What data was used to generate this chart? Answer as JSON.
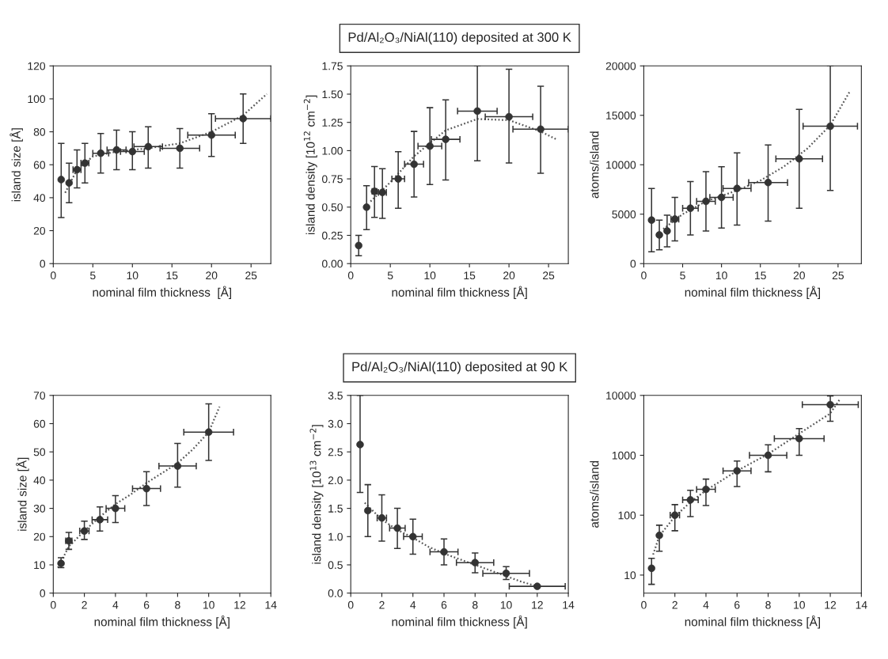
{
  "chart_data": [
    {
      "type": "scatter",
      "ylabel": "island size [Å]",
      "xlabel": "nominal film thickness  [Å]",
      "xlim": [
        0,
        27.5
      ],
      "xticks": [
        0,
        5,
        10,
        15,
        20,
        25
      ],
      "ylim": [
        0,
        120
      ],
      "yticks": [
        0,
        20,
        40,
        60,
        80,
        100,
        120
      ],
      "marker": "circle",
      "grid": false,
      "legend": false,
      "series": [
        {
          "type": "scatter",
          "color": "#333333",
          "x": [
            1,
            2,
            3,
            4,
            6,
            8,
            10,
            12,
            16,
            20,
            24
          ],
          "values": [
            51,
            49,
            57,
            61,
            67,
            69,
            68,
            71,
            70,
            78,
            88
          ],
          "errors": [
            [
              28,
              73
            ],
            [
              37,
              61
            ],
            [
              46,
              69
            ],
            [
              49,
              73
            ],
            [
              55,
              79
            ],
            [
              57,
              81
            ],
            [
              57,
              80
            ],
            [
              58,
              83
            ],
            [
              58,
              82
            ],
            [
              65,
              91
            ],
            [
              73,
              103
            ]
          ],
          "xerrors": [
            null,
            null,
            0.5,
            0.5,
            1,
            1.2,
            1.5,
            1.8,
            2.5,
            3,
            3.5
          ]
        },
        {
          "type": "line",
          "color": "#555555",
          "line_style": "dotted",
          "marker": "none",
          "x": [
            1.5,
            3,
            5,
            8,
            12,
            16,
            20,
            24,
            27
          ],
          "values": [
            43,
            57,
            65,
            68,
            70,
            73,
            80,
            90,
            103
          ]
        }
      ]
    },
    {
      "type": "scatter",
      "title": "Pd/Al₂O₃/NiAl(110) deposited at 300 K",
      "ylabel": "island density [10$^{12}$ cm$^{−2}$]",
      "xlabel": "nominal film thickness [Å]",
      "xlim": [
        0,
        27.5
      ],
      "xticks": [
        0,
        5,
        10,
        15,
        20,
        25
      ],
      "ylim": [
        0,
        1.75
      ],
      "yticks": [
        {
          "value": 0,
          "label": "0.00"
        },
        {
          "value": 0.25,
          "label": "0.25"
        },
        {
          "value": 0.5,
          "label": "0.50"
        },
        {
          "value": 0.75,
          "label": "0.75"
        },
        {
          "value": 1,
          "label": "1.00"
        },
        {
          "value": 1.25,
          "label": "1.25"
        },
        {
          "value": 1.5,
          "label": "1.50"
        },
        {
          "value": 1.75,
          "label": "1.75"
        }
      ],
      "marker": "circle",
      "grid": false,
      "legend": false,
      "series": [
        {
          "type": "scatter",
          "color": "#333333",
          "x": [
            1,
            2,
            3,
            4,
            6,
            8,
            10,
            12,
            16,
            20,
            24
          ],
          "values": [
            0.16,
            0.5,
            0.64,
            0.63,
            0.75,
            0.88,
            1.04,
            1.1,
            1.35,
            1.3,
            1.19
          ],
          "errors": [
            [
              0.07,
              0.25
            ],
            [
              0.3,
              0.69
            ],
            [
              0.41,
              0.86
            ],
            [
              0.4,
              0.84
            ],
            [
              0.49,
              0.99
            ],
            [
              0.59,
              1.17
            ],
            [
              0.7,
              1.38
            ],
            [
              0.74,
              1.45
            ],
            [
              0.91,
              1.75
            ],
            [
              0.89,
              1.72
            ],
            [
              0.8,
              1.57
            ]
          ],
          "xerrors": [
            null,
            null,
            0.3,
            0.5,
            0.8,
            1.2,
            1.5,
            1.8,
            2.5,
            3,
            3.5
          ]
        },
        {
          "type": "line",
          "color": "#555555",
          "line_style": "dotted",
          "marker": "none",
          "x": [
            2.5,
            5,
            8,
            12,
            16,
            20,
            24,
            26
          ],
          "values": [
            0.55,
            0.72,
            0.95,
            1.18,
            1.28,
            1.27,
            1.17,
            1.1
          ]
        }
      ]
    },
    {
      "type": "scatter",
      "ylabel": "atoms/island",
      "xlabel": "nominal film thickness [Å]",
      "xlim": [
        0,
        28
      ],
      "xticks": [
        0,
        5,
        10,
        15,
        20,
        25
      ],
      "ylim": [
        0,
        20000
      ],
      "yticks": [
        0,
        5000,
        10000,
        15000,
        20000
      ],
      "marker": "circle",
      "grid": false,
      "legend": false,
      "series": [
        {
          "type": "scatter",
          "color": "#333333",
          "x": [
            1,
            2,
            3,
            4,
            6,
            8,
            10,
            12,
            16,
            20,
            24
          ],
          "values": [
            4400,
            2900,
            3300,
            4500,
            5600,
            6300,
            6700,
            7600,
            8200,
            10600,
            13900
          ],
          "errors": [
            [
              1200,
              7600
            ],
            [
              1400,
              4400
            ],
            [
              1700,
              4900
            ],
            [
              2300,
              6700
            ],
            [
              2900,
              8300
            ],
            [
              3300,
              9300
            ],
            [
              3600,
              9800
            ],
            [
              3900,
              11200
            ],
            [
              4300,
              12000
            ],
            [
              5600,
              15600
            ],
            [
              7400,
              20000
            ]
          ],
          "xerrors": [
            null,
            null,
            null,
            0.5,
            1,
            1.2,
            1.5,
            1.8,
            2.5,
            3,
            3.5
          ]
        },
        {
          "type": "line",
          "color": "#555555",
          "line_style": "dotted",
          "marker": "none",
          "x": [
            2.5,
            5,
            8,
            12,
            15,
            18,
            21,
            24,
            26.5
          ],
          "values": [
            3500,
            5000,
            6300,
            7400,
            8400,
            9800,
            11600,
            14000,
            17400
          ]
        }
      ]
    },
    {
      "type": "scatter",
      "ylabel": "island size [Å]",
      "xlabel": "nominal film thickness [Å]",
      "xlim": [
        0,
        14
      ],
      "xticks": [
        0,
        2,
        4,
        6,
        8,
        10,
        12,
        14
      ],
      "ylim": [
        0,
        70
      ],
      "yticks": [
        0,
        10,
        20,
        30,
        40,
        50,
        60,
        70
      ],
      "marker": "circle",
      "grid": false,
      "legend": false,
      "series": [
        {
          "type": "scatter",
          "color": "#333333",
          "x": [
            0.5,
            1,
            2,
            3,
            4,
            6,
            8,
            10
          ],
          "values": [
            10.5,
            18.5,
            22,
            26,
            30,
            37,
            45,
            57
          ],
          "errors": [
            [
              9,
              12.5
            ],
            [
              15.5,
              21.5
            ],
            [
              19,
              25.5
            ],
            [
              22,
              30.5
            ],
            [
              25,
              34.5
            ],
            [
              31,
              43
            ],
            [
              37.5,
              53
            ],
            [
              47,
              67
            ]
          ],
          "xerrors": [
            null,
            0.2,
            0.3,
            0.5,
            0.6,
            0.9,
            1.2,
            1.6
          ]
        },
        {
          "type": "line",
          "color": "#555555",
          "line_style": "dotted",
          "marker": "none",
          "x": [
            0.3,
            1,
            2,
            3,
            4,
            5,
            6,
            7,
            8,
            9,
            10,
            10.7
          ],
          "values": [
            9,
            16.5,
            22,
            27,
            31.5,
            35,
            39,
            42.5,
            46,
            51,
            57,
            66
          ]
        }
      ]
    },
    {
      "type": "scatter",
      "title": "Pd/Al₂O₃/NiAl(110) deposited at 90 K",
      "ylabel": "island density [10$^{13}$ cm$^{−2}$]",
      "xlabel": "nominal film thickness [Å]",
      "xlim": [
        0,
        14
      ],
      "xticks": [
        0,
        2,
        4,
        6,
        8,
        10,
        12,
        14
      ],
      "ylim": [
        0,
        3.5
      ],
      "yticks": [
        {
          "value": 0,
          "label": "0.0"
        },
        {
          "value": 0.5,
          "label": "0.5"
        },
        {
          "value": 1,
          "label": "1.0"
        },
        {
          "value": 1.5,
          "label": "1.5"
        },
        {
          "value": 2,
          "label": "2.0"
        },
        {
          "value": 2.5,
          "label": "2.5"
        },
        {
          "value": 3,
          "label": "3.0"
        },
        {
          "value": 3.5,
          "label": "3.5"
        }
      ],
      "marker": "circle",
      "grid": false,
      "legend": false,
      "series": [
        {
          "type": "scatter",
          "color": "#333333",
          "x": [
            0.6,
            1.1,
            2,
            3,
            4,
            6,
            8,
            10,
            12
          ],
          "values": [
            2.63,
            1.46,
            1.33,
            1.15,
            1.0,
            0.73,
            0.54,
            0.35,
            0.12
          ],
          "errors": [
            [
              1.78,
              3.5
            ],
            [
              1.0,
              1.92
            ],
            [
              0.92,
              1.74
            ],
            [
              0.79,
              1.5
            ],
            [
              0.69,
              1.31
            ],
            [
              0.5,
              0.96
            ],
            [
              0.36,
              0.71
            ],
            [
              0.24,
              0.47
            ],
            null
          ],
          "xerrors": [
            null,
            null,
            0.3,
            0.5,
            0.6,
            0.9,
            1.2,
            1.5,
            1.8
          ]
        },
        {
          "type": "line",
          "color": "#555555",
          "line_style": "dotted",
          "marker": "none",
          "x": [
            0.9,
            2,
            3,
            4,
            5,
            6,
            7,
            8,
            9,
            10,
            11,
            12
          ],
          "values": [
            1.6,
            1.3,
            1.12,
            0.98,
            0.82,
            0.7,
            0.6,
            0.5,
            0.4,
            0.3,
            0.2,
            0.12
          ]
        }
      ]
    },
    {
      "type": "scatter",
      "ylabel": "atoms/island",
      "xlabel": "nominal film thickness [Å]",
      "log": "y",
      "xlim": [
        0,
        14
      ],
      "xticks": [
        0,
        2,
        4,
        6,
        8,
        10,
        12,
        14
      ],
      "ylim": [
        5,
        10000
      ],
      "yticks": [
        10,
        100,
        1000,
        10000
      ],
      "marker": "circle",
      "grid": false,
      "legend": false,
      "series": [
        {
          "type": "scatter",
          "color": "#333333",
          "x": [
            0.5,
            1,
            2,
            3,
            4,
            6,
            8,
            10,
            12
          ],
          "values": [
            13,
            46,
            100,
            180,
            270,
            550,
            1000,
            1900,
            7000
          ],
          "errors": [
            [
              7,
              19
            ],
            [
              25,
              68
            ],
            [
              55,
              150
            ],
            [
              95,
              260
            ],
            [
              145,
              400
            ],
            [
              300,
              800
            ],
            [
              530,
              1500
            ],
            [
              1000,
              2800
            ],
            [
              3700,
              9800
            ]
          ],
          "xerrors": [
            null,
            null,
            0.3,
            0.5,
            0.6,
            0.9,
            1.2,
            1.6,
            1.8
          ]
        },
        {
          "type": "line",
          "color": "#555555",
          "line_style": "dotted",
          "marker": "none",
          "x": [
            0.6,
            1,
            2,
            3,
            4,
            6,
            8,
            10,
            12,
            12.6
          ],
          "values": [
            22,
            45,
            95,
            165,
            260,
            550,
            1050,
            2300,
            5000,
            8500
          ]
        }
      ]
    }
  ]
}
